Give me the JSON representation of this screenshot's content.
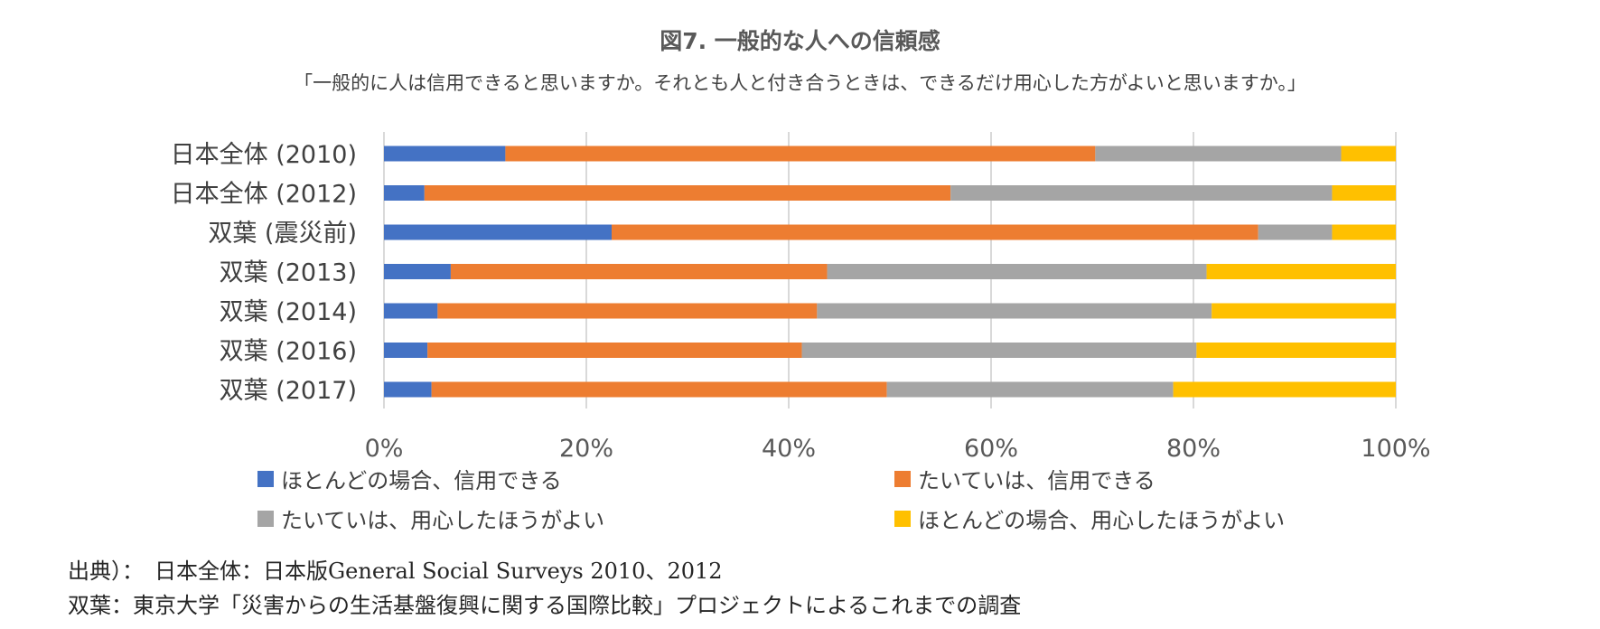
{
  "chart_data": {
    "type": "bar",
    "orientation": "horizontal",
    "stacked": true,
    "title": "図7. 一般的な人への信頼感",
    "subtitle": "「一般的に人は信用できると思いますか。それとも人と付き合うときは、できるだけ用心した方がよいと思いますか。」",
    "categories": [
      "日本全体 (2010)",
      "日本全体 (2012)",
      "双葉 (震災前)",
      "双葉 (2013)",
      "双葉 (2014)",
      "双葉 (2016)",
      "双葉 (2017)"
    ],
    "series": [
      {
        "name": "ほとんどの場合、信用できる",
        "color": "#4472C4",
        "values": [
          12.0,
          4.0,
          22.5,
          6.6,
          5.3,
          4.3,
          4.7
        ]
      },
      {
        "name": "たいていは、信用できる",
        "color": "#ED7D31",
        "values": [
          58.3,
          52.0,
          63.9,
          37.2,
          37.5,
          37.0,
          45.0
        ]
      },
      {
        "name": "たいていは、用心したほうがよい",
        "color": "#A5A5A5",
        "values": [
          24.3,
          37.7,
          7.3,
          37.5,
          39.0,
          39.0,
          28.3
        ]
      },
      {
        "name": "ほとんどの場合、用心したほうがよい",
        "color": "#FFC000",
        "values": [
          5.4,
          6.3,
          6.3,
          18.7,
          18.2,
          19.7,
          22.0
        ]
      }
    ],
    "xlim": [
      0,
      100
    ],
    "xticks": [
      "0%",
      "20%",
      "40%",
      "60%",
      "80%",
      "100%"
    ],
    "grid": true,
    "legend_position": "bottom"
  },
  "source": {
    "line1": "出典）：　日本全体：日本版General Social Surveys 2010、2012",
    "line2": "双葉：東京大学「災害からの生活基盤復興に関する国際比較」プロジェクトによるこれまでの調査"
  }
}
